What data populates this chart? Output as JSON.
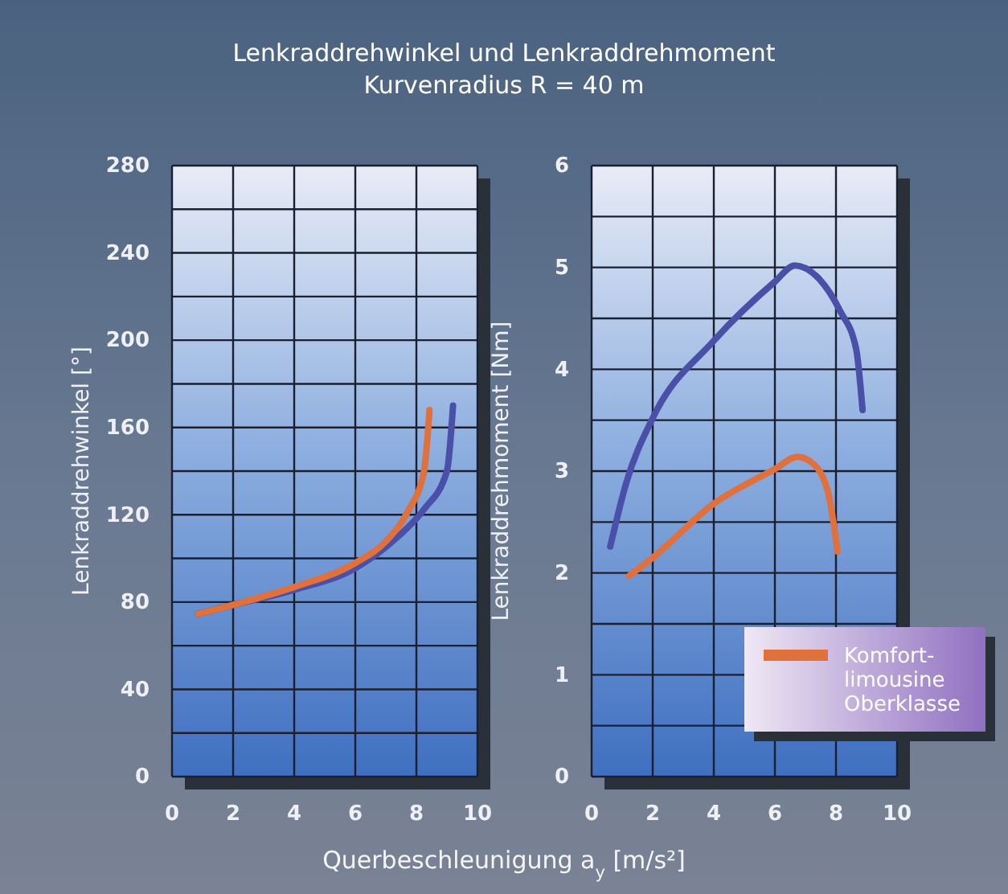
{
  "chart_data": [
    {
      "type": "line",
      "title": "Lenkraddrehwinkel und Lenkraddrehmoment",
      "subtitle": "Kurvenradius R = 40 m",
      "xlabel": "Querbeschleunigung a$_{y}$ [m/s²]",
      "ylabel": "Lenkraddrehwinkel [°]",
      "xlim": [
        0,
        10
      ],
      "ylim": [
        0,
        280
      ],
      "xticks": [
        0,
        2,
        4,
        6,
        8,
        10
      ],
      "yticks": [
        0,
        {
          "value": 20,
          "label": null
        },
        40,
        {
          "value": 60,
          "label": null
        },
        80,
        {
          "value": 100,
          "label": null
        },
        120,
        {
          "value": 140,
          "label": null
        },
        160,
        {
          "value": 180,
          "label": null
        },
        200,
        {
          "value": 220,
          "label": null
        },
        240,
        {
          "value": 260,
          "label": null
        },
        280
      ],
      "grid": true,
      "series": [
        {
          "color": "#4a50a8",
          "x": [
            0.86,
            2,
            4,
            6,
            7.4,
            8.25,
            9.0,
            9.2
          ],
          "values": [
            74.6,
            78.7,
            85.6,
            95.5,
            110,
            122.5,
            140,
            170
          ]
        },
        {
          "color": "#e0703c",
          "x": [
            0.86,
            2,
            4,
            6,
            7.0,
            7.7,
            8.25,
            8.43
          ],
          "values": [
            74.6,
            78.7,
            86.9,
            97.9,
            107.8,
            121,
            140,
            168
          ]
        }
      ]
    },
    {
      "type": "line",
      "ylabel": "Lenkraddrehmoment [Nm]",
      "xlim": [
        0,
        10
      ],
      "ylim": [
        0,
        6
      ],
      "xticks": [
        0,
        2,
        4,
        6,
        8,
        10
      ],
      "yticks": [
        0,
        {
          "value": 0.5,
          "label": null
        },
        1,
        {
          "value": 1.5,
          "label": null
        },
        2,
        {
          "value": 2.5,
          "label": null
        },
        3,
        {
          "value": 3.5,
          "label": null
        },
        4,
        {
          "value": 4.5,
          "label": null
        },
        5,
        {
          "value": 5.5,
          "label": null
        },
        6
      ],
      "grid": true,
      "legend": "bottom right",
      "series": [
        {
          "color": "#4a50a8",
          "x": [
            0.61,
            1.14,
            2,
            4,
            6,
            6.65,
            7.44,
            8.14,
            8.66,
            8.87
          ],
          "values": [
            2.26,
            2.89,
            3.52,
            4.28,
            4.86,
            5.02,
            4.89,
            4.57,
            4.2,
            3.6
          ]
        },
        {
          "name": "Komfort-limousine Oberklasse",
          "color": "#e0703c",
          "x": [
            1.22,
            2,
            4,
            6,
            6.74,
            7.26,
            7.75,
            8.05
          ],
          "values": [
            1.97,
            2.15,
            2.68,
            3.02,
            3.14,
            3.07,
            2.78,
            2.21
          ]
        }
      ]
    }
  ]
}
